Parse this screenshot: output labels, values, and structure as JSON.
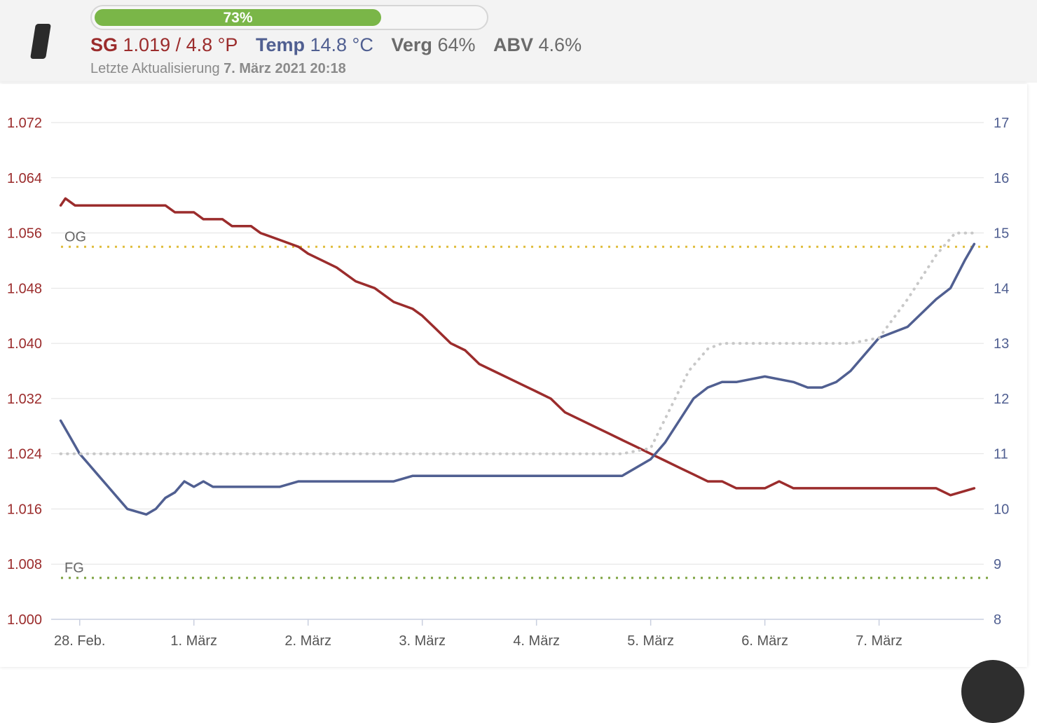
{
  "progress": {
    "label": "73%",
    "value": 0.73,
    "color": "#7ab648"
  },
  "stats": {
    "sg_label": "SG",
    "sg_value": "1.019 / 4.8 °P",
    "temp_label": "Temp",
    "temp_value": "14.8 °C",
    "att_label": "Verg",
    "att_value": "64%",
    "abv_label": "ABV",
    "abv_value": "4.6%"
  },
  "updated": {
    "prefix": "Letzte Aktualisierung",
    "datetime": "7. März 2021 20:18"
  },
  "colors": {
    "sg": "#9b2c2c",
    "temp": "#505f91",
    "og_line": "#e0bd3c",
    "fg_line": "#7ca33e",
    "setpoint": "#c8c8c8"
  },
  "chart_data": {
    "type": "line",
    "x_unit": "days",
    "xlim": [
      "2021-02-27T18:00",
      "2021-03-07T22:00"
    ],
    "x_ticks": [
      {
        "label": "28. Feb.",
        "date": "2021-02-28"
      },
      {
        "label": "1. März",
        "date": "2021-03-01"
      },
      {
        "label": "2. März",
        "date": "2021-03-02"
      },
      {
        "label": "3. März",
        "date": "2021-03-03"
      },
      {
        "label": "4. März",
        "date": "2021-03-04"
      },
      {
        "label": "5. März",
        "date": "2021-03-05"
      },
      {
        "label": "6. März",
        "date": "2021-03-06"
      },
      {
        "label": "7. März",
        "date": "2021-03-07"
      }
    ],
    "y_left": {
      "ylim": [
        1.0,
        1.072
      ],
      "ticks": [
        "1.000",
        "1.008",
        "1.016",
        "1.024",
        "1.032",
        "1.040",
        "1.048",
        "1.056",
        "1.064",
        "1.072"
      ]
    },
    "y_right": {
      "ylim": [
        8,
        17
      ],
      "ticks": [
        "8",
        "9",
        "10",
        "11",
        "12",
        "13",
        "14",
        "15",
        "16",
        "17"
      ]
    },
    "reference_lines": [
      {
        "label": "OG",
        "value": 1.054,
        "axis": "left"
      },
      {
        "label": "FG",
        "value": 1.006,
        "axis": "left"
      }
    ],
    "series": [
      {
        "axis": "left",
        "style": "solid",
        "points": [
          [
            "2021-02-27T20:00",
            1.06
          ],
          [
            "2021-02-27T21:00",
            1.061
          ],
          [
            "2021-02-27T23:00",
            1.06
          ],
          [
            "2021-02-28T06:00",
            1.06
          ],
          [
            "2021-02-28T12:00",
            1.06
          ],
          [
            "2021-02-28T18:00",
            1.06
          ],
          [
            "2021-02-28T20:00",
            1.059
          ],
          [
            "2021-03-01T00:00",
            1.059
          ],
          [
            "2021-03-01T02:00",
            1.058
          ],
          [
            "2021-03-01T06:00",
            1.058
          ],
          [
            "2021-03-01T08:00",
            1.057
          ],
          [
            "2021-03-01T12:00",
            1.057
          ],
          [
            "2021-03-01T14:00",
            1.056
          ],
          [
            "2021-03-01T18:00",
            1.055
          ],
          [
            "2021-03-01T22:00",
            1.054
          ],
          [
            "2021-03-02T00:00",
            1.053
          ],
          [
            "2021-03-02T03:00",
            1.052
          ],
          [
            "2021-03-02T06:00",
            1.051
          ],
          [
            "2021-03-02T10:00",
            1.049
          ],
          [
            "2021-03-02T14:00",
            1.048
          ],
          [
            "2021-03-02T18:00",
            1.046
          ],
          [
            "2021-03-02T22:00",
            1.045
          ],
          [
            "2021-03-03T00:00",
            1.044
          ],
          [
            "2021-03-03T03:00",
            1.042
          ],
          [
            "2021-03-03T06:00",
            1.04
          ],
          [
            "2021-03-03T09:00",
            1.039
          ],
          [
            "2021-03-03T12:00",
            1.037
          ],
          [
            "2021-03-03T15:00",
            1.036
          ],
          [
            "2021-03-03T18:00",
            1.035
          ],
          [
            "2021-03-03T21:00",
            1.034
          ],
          [
            "2021-03-04T00:00",
            1.033
          ],
          [
            "2021-03-04T03:00",
            1.032
          ],
          [
            "2021-03-04T06:00",
            1.03
          ],
          [
            "2021-03-04T09:00",
            1.029
          ],
          [
            "2021-03-04T12:00",
            1.028
          ],
          [
            "2021-03-04T15:00",
            1.027
          ],
          [
            "2021-03-04T18:00",
            1.026
          ],
          [
            "2021-03-04T21:00",
            1.025
          ],
          [
            "2021-03-05T00:00",
            1.024
          ],
          [
            "2021-03-05T03:00",
            1.023
          ],
          [
            "2021-03-05T06:00",
            1.022
          ],
          [
            "2021-03-05T09:00",
            1.021
          ],
          [
            "2021-03-05T12:00",
            1.02
          ],
          [
            "2021-03-05T15:00",
            1.02
          ],
          [
            "2021-03-05T18:00",
            1.019
          ],
          [
            "2021-03-06T00:00",
            1.019
          ],
          [
            "2021-03-06T03:00",
            1.02
          ],
          [
            "2021-03-06T06:00",
            1.019
          ],
          [
            "2021-03-06T12:00",
            1.019
          ],
          [
            "2021-03-06T18:00",
            1.019
          ],
          [
            "2021-03-07T00:00",
            1.019
          ],
          [
            "2021-03-07T06:00",
            1.019
          ],
          [
            "2021-03-07T12:00",
            1.019
          ],
          [
            "2021-03-07T15:00",
            1.018
          ],
          [
            "2021-03-07T20:00",
            1.019
          ]
        ]
      },
      {
        "axis": "right",
        "style": "solid",
        "points": [
          [
            "2021-02-27T20:00",
            11.6
          ],
          [
            "2021-02-27T22:00",
            11.3
          ],
          [
            "2021-02-28T00:00",
            11.0
          ],
          [
            "2021-02-28T02:00",
            10.8
          ],
          [
            "2021-02-28T04:00",
            10.6
          ],
          [
            "2021-02-28T06:00",
            10.4
          ],
          [
            "2021-02-28T08:00",
            10.2
          ],
          [
            "2021-02-28T10:00",
            10.0
          ],
          [
            "2021-02-28T14:00",
            9.9
          ],
          [
            "2021-02-28T16:00",
            10.0
          ],
          [
            "2021-02-28T18:00",
            10.2
          ],
          [
            "2021-02-28T20:00",
            10.3
          ],
          [
            "2021-02-28T22:00",
            10.5
          ],
          [
            "2021-03-01T00:00",
            10.4
          ],
          [
            "2021-03-01T02:00",
            10.5
          ],
          [
            "2021-03-01T04:00",
            10.4
          ],
          [
            "2021-03-01T12:00",
            10.4
          ],
          [
            "2021-03-01T18:00",
            10.4
          ],
          [
            "2021-03-01T22:00",
            10.5
          ],
          [
            "2021-03-02T06:00",
            10.5
          ],
          [
            "2021-03-02T18:00",
            10.5
          ],
          [
            "2021-03-02T22:00",
            10.6
          ],
          [
            "2021-03-03T12:00",
            10.6
          ],
          [
            "2021-03-03T18:00",
            10.6
          ],
          [
            "2021-03-04T00:00",
            10.6
          ],
          [
            "2021-03-04T06:00",
            10.6
          ],
          [
            "2021-03-04T12:00",
            10.6
          ],
          [
            "2021-03-04T18:00",
            10.6
          ],
          [
            "2021-03-05T00:00",
            10.9
          ],
          [
            "2021-03-05T03:00",
            11.2
          ],
          [
            "2021-03-05T06:00",
            11.6
          ],
          [
            "2021-03-05T09:00",
            12.0
          ],
          [
            "2021-03-05T12:00",
            12.2
          ],
          [
            "2021-03-05T15:00",
            12.3
          ],
          [
            "2021-03-05T18:00",
            12.3
          ],
          [
            "2021-03-06T00:00",
            12.4
          ],
          [
            "2021-03-06T06:00",
            12.3
          ],
          [
            "2021-03-06T09:00",
            12.2
          ],
          [
            "2021-03-06T12:00",
            12.2
          ],
          [
            "2021-03-06T15:00",
            12.3
          ],
          [
            "2021-03-06T18:00",
            12.5
          ],
          [
            "2021-03-06T21:00",
            12.8
          ],
          [
            "2021-03-07T00:00",
            13.1
          ],
          [
            "2021-03-07T06:00",
            13.3
          ],
          [
            "2021-03-07T12:00",
            13.8
          ],
          [
            "2021-03-07T15:00",
            14.0
          ],
          [
            "2021-03-07T18:00",
            14.5
          ],
          [
            "2021-03-07T20:00",
            14.8
          ]
        ]
      },
      {
        "axis": "right",
        "style": "dotted",
        "points": [
          [
            "2021-02-27T20:00",
            11.0
          ],
          [
            "2021-03-04T18:00",
            11.0
          ],
          [
            "2021-03-05T00:00",
            11.1
          ],
          [
            "2021-03-05T04:00",
            11.8
          ],
          [
            "2021-03-05T08:00",
            12.5
          ],
          [
            "2021-03-05T12:00",
            12.9
          ],
          [
            "2021-03-05T15:00",
            13.0
          ],
          [
            "2021-03-06T00:00",
            13.0
          ],
          [
            "2021-03-06T18:00",
            13.0
          ],
          [
            "2021-03-07T00:00",
            13.1
          ],
          [
            "2021-03-07T06:00",
            13.8
          ],
          [
            "2021-03-07T12:00",
            14.6
          ],
          [
            "2021-03-07T16:00",
            15.0
          ],
          [
            "2021-03-07T20:00",
            15.0
          ]
        ]
      }
    ]
  }
}
